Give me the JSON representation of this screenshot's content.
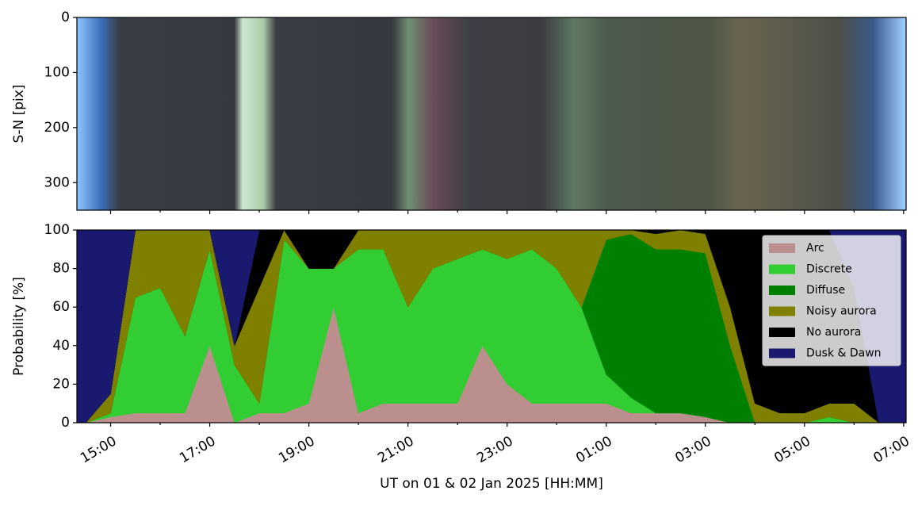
{
  "chart_data": [
    {
      "type": "image",
      "ylabel": "S-N [pix]",
      "ylim": [
        350,
        0
      ],
      "yticks": [
        0,
        100,
        200,
        300
      ]
    },
    {
      "type": "stacked_area",
      "xlabel": "UT on 01 & 02 Jan 2025 [HH:MM]",
      "ylabel": "Probability [%]",
      "xlim": [
        14.32,
        31.05
      ],
      "xticks": [
        {
          "value": 15,
          "label": "15:00"
        },
        {
          "value": 17,
          "label": "17:00"
        },
        {
          "value": 19,
          "label": "19:00"
        },
        {
          "value": 21,
          "label": "21:00"
        },
        {
          "value": 23,
          "label": "23:00"
        },
        {
          "value": 25,
          "label": "01:00"
        },
        {
          "value": 27,
          "label": "03:00"
        },
        {
          "value": 29,
          "label": "05:00"
        },
        {
          "value": 31,
          "label": "07:00"
        }
      ],
      "xminor": [
        16,
        18,
        20,
        22,
        24,
        26,
        28,
        30
      ],
      "ylim": [
        0,
        100
      ],
      "yticks": [
        0,
        20,
        40,
        60,
        80,
        100
      ],
      "legend": "upper right",
      "x": [
        14.32,
        14.5,
        15.0,
        15.5,
        16.0,
        16.5,
        17.0,
        17.5,
        18.0,
        18.5,
        19.0,
        19.5,
        20.0,
        20.5,
        21.0,
        21.5,
        22.0,
        22.5,
        23.0,
        23.5,
        24.0,
        24.5,
        25.0,
        25.5,
        26.0,
        26.5,
        27.0,
        27.5,
        28.0,
        28.5,
        29.0,
        29.5,
        30.0,
        30.5,
        31.0,
        31.05
      ],
      "series": [
        {
          "name": "Arc",
          "color": "#bc8f8f",
          "values": [
            0,
            0,
            3,
            5,
            5,
            5,
            40,
            0,
            5,
            5,
            10,
            60,
            5,
            10,
            10,
            10,
            10,
            40,
            20,
            10,
            10,
            10,
            10,
            5,
            5,
            5,
            3,
            0,
            0,
            0,
            0,
            0,
            0,
            0,
            0,
            0
          ]
        },
        {
          "name": "Discrete",
          "color": "#32cd32",
          "values": [
            0,
            0,
            2,
            60,
            65,
            40,
            50,
            30,
            5,
            90,
            70,
            20,
            85,
            80,
            50,
            70,
            75,
            50,
            65,
            80,
            70,
            50,
            15,
            8,
            0,
            0,
            0,
            0,
            0,
            0,
            0,
            3,
            0,
            0,
            0,
            0
          ]
        },
        {
          "name": "Diffuse",
          "color": "#008000",
          "values": [
            0,
            0,
            0,
            0,
            0,
            0,
            0,
            0,
            0,
            0,
            0,
            0,
            0,
            0,
            0,
            0,
            0,
            0,
            0,
            0,
            0,
            0,
            70,
            85,
            85,
            85,
            85,
            40,
            0,
            0,
            0,
            0,
            0,
            0,
            0,
            0
          ]
        },
        {
          "name": "Noisy aurora",
          "color": "#808000",
          "values": [
            0,
            0,
            10,
            35,
            30,
            55,
            10,
            10,
            60,
            5,
            0,
            0,
            10,
            10,
            40,
            20,
            15,
            10,
            15,
            10,
            20,
            40,
            5,
            2,
            8,
            10,
            10,
            20,
            10,
            5,
            5,
            7,
            10,
            0,
            0,
            0
          ]
        },
        {
          "name": "No aurora",
          "color": "#000000",
          "values": [
            0,
            0,
            0,
            0,
            0,
            0,
            0,
            0,
            30,
            0,
            20,
            20,
            0,
            0,
            0,
            0,
            0,
            0,
            0,
            0,
            0,
            0,
            0,
            0,
            2,
            0,
            2,
            40,
            90,
            95,
            95,
            90,
            60,
            0,
            0,
            0
          ]
        },
        {
          "name": "Dusk & Dawn",
          "color": "#191970",
          "values": [
            100,
            100,
            85,
            0,
            0,
            0,
            0,
            60,
            0,
            0,
            0,
            0,
            0,
            0,
            0,
            0,
            0,
            0,
            0,
            0,
            0,
            0,
            0,
            0,
            0,
            0,
            0,
            0,
            0,
            0,
            0,
            0,
            30,
            100,
            100,
            100
          ]
        }
      ]
    }
  ]
}
